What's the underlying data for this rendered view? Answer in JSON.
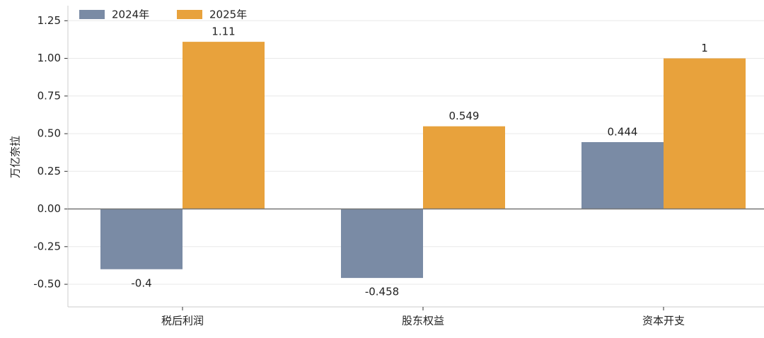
{
  "chart_data": {
    "type": "bar",
    "y_label": "万亿奈拉",
    "categories": [
      "税后利润",
      "股东权益",
      "资本开支"
    ],
    "series": [
      {
        "name": "2024年",
        "color": "#7a8ba5",
        "values": [
          -0.4,
          -0.458,
          0.444
        ]
      },
      {
        "name": "2025年",
        "color": "#e8a23c",
        "values": [
          1.11,
          0.549,
          1
        ]
      }
    ],
    "ylim": [
      -0.65,
      1.35
    ],
    "yticks": [
      {
        "value": -0.5,
        "label": "-0.50"
      },
      -0.25,
      {
        "value": 0,
        "label": "0.00"
      },
      0.25,
      {
        "value": 0.5,
        "label": "0.50"
      },
      0.75,
      {
        "value": 1,
        "label": "1.00"
      },
      1.25
    ],
    "grid": true,
    "legend": "upper-left"
  }
}
